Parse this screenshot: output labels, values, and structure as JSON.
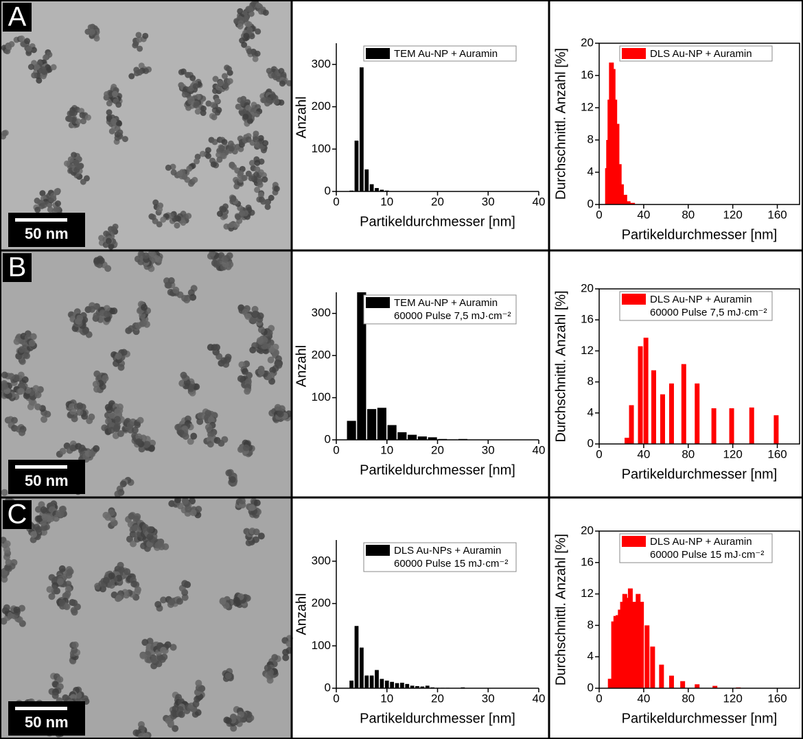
{
  "panels": [
    {
      "letter": "A",
      "scale_bar": "50 nm"
    },
    {
      "letter": "B",
      "scale_bar": "50 nm"
    },
    {
      "letter": "C",
      "scale_bar": "50 nm"
    }
  ],
  "chart_data": [
    {
      "type": "histogram",
      "xlabel": "Partikeldurchmesser [nm]",
      "ylabel": "Anzahl",
      "xlim": [
        0,
        40
      ],
      "ylim": [
        0,
        350
      ],
      "xticks": [
        0,
        10,
        20,
        30,
        40
      ],
      "yticks": [
        0,
        100,
        200,
        300
      ],
      "bins": [
        2.5,
        3.5,
        4.5,
        5.5,
        6.5,
        7.5,
        8.5,
        9.5,
        10.5
      ],
      "series": [
        {
          "name": "TEM Au-NP + Auramin",
          "color": "#000000",
          "values": [
            2,
            120,
            293,
            52,
            17,
            8,
            4,
            2
          ]
        }
      ]
    },
    {
      "type": "bar",
      "xlabel": "Partikeldurchmesser [nm]",
      "ylabel": "Durchschnittl. Anzahl [%]",
      "xlim": [
        0,
        180
      ],
      "ylim": [
        0,
        20
      ],
      "xticks": [
        0,
        40,
        80,
        120,
        160
      ],
      "yticks": [
        0,
        4,
        8,
        12,
        16,
        20
      ],
      "x": [
        7.5,
        8.5,
        9.7,
        11,
        12.5,
        14,
        16,
        18,
        20,
        23,
        26,
        30
      ],
      "series": [
        {
          "name": "DLS Au-NP + Auramin",
          "color": "#ff0000",
          "values": [
            4.5,
            8,
            13,
            17.6,
            16.8,
            13,
            10,
            5,
            2.5,
            1.2,
            0.4,
            0.2
          ]
        }
      ]
    },
    {
      "type": "histogram",
      "xlabel": "Partikeldurchmesser [nm]",
      "ylabel": "Anzahl",
      "xlim": [
        0,
        40
      ],
      "ylim": [
        0,
        350
      ],
      "xticks": [
        0,
        10,
        20,
        30,
        40
      ],
      "yticks": [
        0,
        100,
        200,
        300
      ],
      "bins": [
        2,
        4,
        6,
        8,
        10,
        12,
        14,
        16,
        18,
        20,
        22,
        24,
        26
      ],
      "series": [
        {
          "name": "TEM Au-NP + Auramin",
          "color": "#000000",
          "values": [
            45,
            350,
            73,
            76,
            35,
            18,
            12,
            8,
            6,
            2,
            1,
            2
          ]
        }
      ],
      "legend_note": "60000 Pulse 7,5 mJ·cm⁻²"
    },
    {
      "type": "bar",
      "xlabel": "Partikeldurchmesser [nm]",
      "ylabel": "Durchschnittl. Anzahl [%]",
      "xlim": [
        0,
        180
      ],
      "ylim": [
        0,
        20
      ],
      "xticks": [
        0,
        40,
        80,
        120,
        160
      ],
      "yticks": [
        0,
        4,
        8,
        12,
        16,
        20
      ],
      "x": [
        25,
        29,
        37,
        42,
        49,
        57,
        65,
        76,
        88,
        103,
        119,
        137,
        159
      ],
      "series": [
        {
          "name": "DLS Au-NP + Auramin",
          "color": "#ff0000",
          "values": [
            0.8,
            5,
            12.6,
            13.7,
            9.5,
            6.4,
            7.8,
            10.3,
            7.8,
            4.6,
            4.6,
            4.7,
            3.7
          ]
        }
      ],
      "legend_note": "60000 Pulse 7,5 mJ·cm⁻²"
    },
    {
      "type": "histogram",
      "xlabel": "Partikeldurchmesser [nm]",
      "ylabel": "Anzahl",
      "xlim": [
        0,
        40
      ],
      "ylim": [
        0,
        350
      ],
      "xticks": [
        0,
        10,
        20,
        30,
        40
      ],
      "yticks": [
        0,
        100,
        200,
        300
      ],
      "bins": [
        2.5,
        3.5,
        4.5,
        5.5,
        6.5,
        7.5,
        8.5,
        9.5,
        10.5,
        11.5,
        12.5,
        13.5,
        14.5,
        15.5,
        16.5,
        17.5,
        18.5,
        19.5,
        20.5,
        21.5,
        22.5,
        23.5,
        24.5,
        25.5
      ],
      "series": [
        {
          "name": "DLS Au-NPs + Auramin",
          "color": "#000000",
          "values": [
            18,
            147,
            96,
            30,
            30,
            43,
            22,
            18,
            15,
            12,
            13,
            10,
            6,
            5,
            4,
            6,
            2,
            1,
            1,
            1,
            0,
            0,
            2
          ]
        }
      ],
      "legend_note": "60000 Pulse   15 mJ·cm⁻²"
    },
    {
      "type": "bar",
      "xlabel": "Partikeldurchmesser [nm]",
      "ylabel": "Durchschnittl. Anzahl [%]",
      "xlim": [
        0,
        180
      ],
      "ylim": [
        0,
        20
      ],
      "xticks": [
        0,
        40,
        80,
        120,
        160
      ],
      "yticks": [
        0,
        4,
        8,
        12,
        16,
        20
      ],
      "x": [
        10,
        13,
        15,
        17,
        19,
        21,
        23,
        25,
        28,
        31,
        35,
        38,
        43,
        48,
        56,
        65,
        75,
        88,
        104,
        125
      ],
      "series": [
        {
          "name": "DLS Au-NP + Auramin",
          "color": "#ff0000",
          "values": [
            1.2,
            8.5,
            9.2,
            9.3,
            10,
            11,
            12,
            11.5,
            12.7,
            11,
            12,
            11,
            8,
            5.3,
            3,
            1.6,
            0.9,
            0.5,
            0.3,
            0.1
          ]
        }
      ],
      "legend_note": "60000 Pulse   15 mJ·cm⁻²"
    }
  ]
}
